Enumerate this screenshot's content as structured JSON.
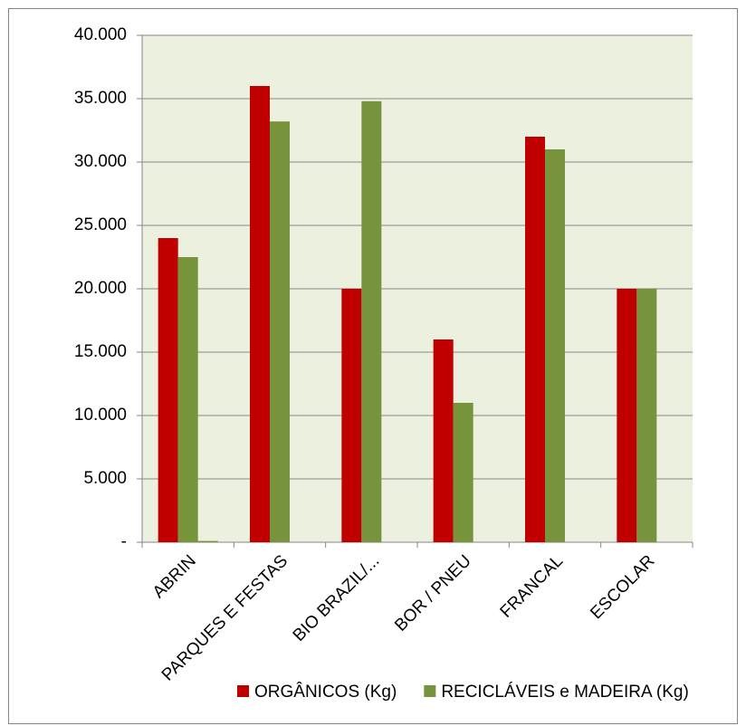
{
  "chart_data": {
    "type": "bar",
    "categories": [
      "ABRIN",
      "PARQUES E FESTAS",
      "BIO BRAZIL/...",
      "BOR / PNEU",
      "FRANCAL",
      "ESCOLAR"
    ],
    "series": [
      {
        "name": "ORGÂNICOS (Kg)",
        "color": "#c00000",
        "values": [
          24000,
          36000,
          20000,
          16000,
          32000,
          20000
        ]
      },
      {
        "name": "RECICLÁVEIS e MADEIRA (Kg)",
        "color": "#77933c",
        "values": [
          22500,
          33200,
          34800,
          11000,
          31000,
          20000
        ]
      },
      {
        "color": "#77933c",
        "values": [
          100,
          null,
          null,
          null,
          null,
          null
        ]
      }
    ],
    "ylim": [
      0,
      40000
    ],
    "yticks": [
      {
        "value": 0,
        "label": "-"
      },
      {
        "value": 5000,
        "label": "5.000"
      },
      {
        "value": 10000,
        "label": "10.000"
      },
      {
        "value": 15000,
        "label": "15.000"
      },
      {
        "value": 20000,
        "label": "20.000"
      },
      {
        "value": 25000,
        "label": "25.000"
      },
      {
        "value": 30000,
        "label": "30.000"
      },
      {
        "value": 35000,
        "label": "35.000"
      },
      {
        "value": 40000,
        "label": "40.000"
      }
    ],
    "grid": true,
    "legend": "bottom"
  }
}
